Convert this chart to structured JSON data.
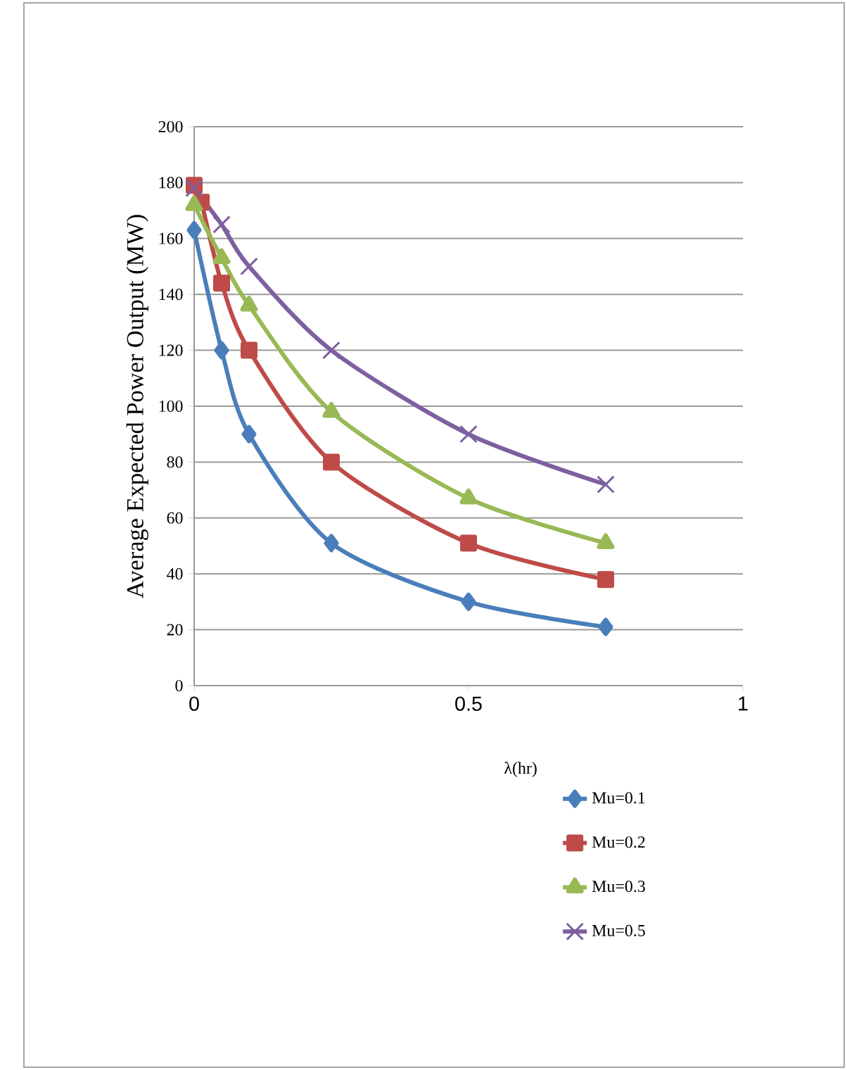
{
  "chart_data": {
    "type": "line",
    "xlabel": "λ(hr)",
    "ylabel": "Average Expected Power Output (MW)",
    "xlim": [
      0,
      1
    ],
    "xticks": [
      0,
      0.5,
      1
    ],
    "ylim": [
      0,
      200
    ],
    "yticks": [
      0,
      20,
      40,
      60,
      80,
      100,
      120,
      140,
      160,
      180,
      200
    ],
    "grid": "y",
    "legend": "bottom right",
    "series": [
      {
        "name": "Mu=0.1",
        "color": "#4a7ebb",
        "marker": "diamond",
        "x": [
          0,
          0.05,
          0.1,
          0.25,
          0.5,
          0.75
        ],
        "values": [
          163,
          120,
          90,
          51,
          30,
          21
        ]
      },
      {
        "name": "Mu=0.2",
        "color": "#be4b48",
        "marker": "square",
        "x": [
          0,
          0.013,
          0.05,
          0.1,
          0.25,
          0.5,
          0.75
        ],
        "values": [
          179,
          173,
          144,
          120,
          80,
          51,
          38
        ]
      },
      {
        "name": "Mu=0.3",
        "color": "#98b954",
        "marker": "triangle",
        "x": [
          0,
          0.05,
          0.1,
          0.25,
          0.5,
          0.75
        ],
        "values": [
          172,
          153,
          136,
          98,
          67,
          51
        ]
      },
      {
        "name": "Mu=0.5",
        "color": "#7d60a0",
        "marker": "cross",
        "x": [
          0,
          0.05,
          0.1,
          0.25,
          0.5,
          0.75
        ],
        "values": [
          178,
          165,
          150,
          120,
          90,
          72
        ]
      }
    ]
  }
}
